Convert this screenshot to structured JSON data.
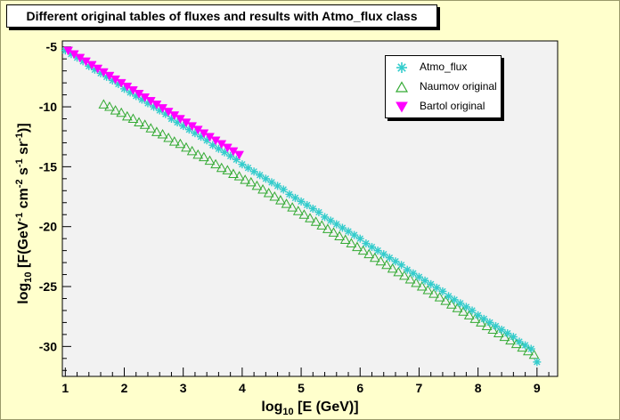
{
  "window": {
    "title": "Different original tables of fluxes and results with Atmo_flux class",
    "background": "#ffffcc",
    "plot_background": "#f2f2f2"
  },
  "chart_data": {
    "type": "scatter",
    "title": "Different original tables of fluxes and results with Atmo_flux class",
    "xlabel": {
      "prefix": "log",
      "sub": "10",
      "rest": " [E (GeV)]"
    },
    "ylabel": {
      "prefix": "log",
      "sub": "10",
      "a": " [F(GeV",
      "s1": "-1",
      "b": " cm",
      "s2": "-2",
      "c": " s",
      "s3": "-1",
      "d": " sr",
      "s4": "-1",
      "e": ")]"
    },
    "xlim": [
      0.95,
      9.35
    ],
    "ylim": [
      -32.5,
      -4.5
    ],
    "x_ticks": [
      1,
      2,
      3,
      4,
      5,
      6,
      7,
      8,
      9
    ],
    "x_tick_labels": [
      "1",
      "2",
      "3",
      "4",
      "5",
      "6",
      "7",
      "8",
      "9"
    ],
    "y_ticks": [
      -5,
      -10,
      -15,
      -20,
      -25,
      -30
    ],
    "y_tick_labels": [
      "-5",
      "-10",
      "-15",
      "-20",
      "-25",
      "-30"
    ],
    "grid": false,
    "legend_position": "top-right",
    "series": [
      {
        "name": "Atmo_flux",
        "marker": "asterisk",
        "color": "#33cccc",
        "points": [
          [
            1.0,
            -5.3
          ],
          [
            1.1,
            -5.6
          ],
          [
            1.2,
            -5.9
          ],
          [
            1.3,
            -6.2
          ],
          [
            1.4,
            -6.6
          ],
          [
            1.5,
            -6.9
          ],
          [
            1.6,
            -7.2
          ],
          [
            1.7,
            -7.5
          ],
          [
            1.8,
            -7.8
          ],
          [
            1.9,
            -8.1
          ],
          [
            2.0,
            -8.5
          ],
          [
            2.1,
            -8.8
          ],
          [
            2.2,
            -9.1
          ],
          [
            2.3,
            -9.4
          ],
          [
            2.4,
            -9.7
          ],
          [
            2.5,
            -10.0
          ],
          [
            2.6,
            -10.3
          ],
          [
            2.7,
            -10.6
          ],
          [
            2.8,
            -11.0
          ],
          [
            2.9,
            -11.3
          ],
          [
            3.0,
            -11.6
          ],
          [
            3.1,
            -11.9
          ],
          [
            3.2,
            -12.2
          ],
          [
            3.3,
            -12.5
          ],
          [
            3.4,
            -12.8
          ],
          [
            3.5,
            -13.2
          ],
          [
            3.6,
            -13.5
          ],
          [
            3.7,
            -13.8
          ],
          [
            3.8,
            -14.1
          ],
          [
            3.9,
            -14.4
          ],
          [
            4.0,
            -14.8
          ],
          [
            4.1,
            -15.1
          ],
          [
            4.2,
            -15.4
          ],
          [
            4.3,
            -15.7
          ],
          [
            4.4,
            -16.0
          ],
          [
            4.5,
            -16.3
          ],
          [
            4.6,
            -16.6
          ],
          [
            4.7,
            -16.9
          ],
          [
            4.8,
            -17.3
          ],
          [
            4.9,
            -17.6
          ],
          [
            5.0,
            -17.9
          ],
          [
            5.1,
            -18.2
          ],
          [
            5.2,
            -18.5
          ],
          [
            5.3,
            -18.8
          ],
          [
            5.4,
            -19.2
          ],
          [
            5.5,
            -19.5
          ],
          [
            5.6,
            -19.8
          ],
          [
            5.7,
            -20.1
          ],
          [
            5.8,
            -20.4
          ],
          [
            5.9,
            -20.7
          ],
          [
            6.0,
            -21.0
          ],
          [
            6.1,
            -21.4
          ],
          [
            6.2,
            -21.7
          ],
          [
            6.3,
            -22.0
          ],
          [
            6.4,
            -22.3
          ],
          [
            6.5,
            -22.6
          ],
          [
            6.6,
            -22.9
          ],
          [
            6.7,
            -23.2
          ],
          [
            6.8,
            -23.6
          ],
          [
            6.9,
            -23.9
          ],
          [
            7.0,
            -24.2
          ],
          [
            7.1,
            -24.5
          ],
          [
            7.2,
            -24.8
          ],
          [
            7.3,
            -25.1
          ],
          [
            7.4,
            -25.4
          ],
          [
            7.5,
            -25.8
          ],
          [
            7.6,
            -26.1
          ],
          [
            7.7,
            -26.4
          ],
          [
            7.8,
            -26.7
          ],
          [
            7.9,
            -27.0
          ],
          [
            8.0,
            -27.4
          ],
          [
            8.1,
            -27.7
          ],
          [
            8.2,
            -28.0
          ],
          [
            8.3,
            -28.3
          ],
          [
            8.4,
            -28.6
          ],
          [
            8.5,
            -28.9
          ],
          [
            8.6,
            -29.2
          ],
          [
            8.7,
            -29.6
          ],
          [
            8.8,
            -29.9
          ],
          [
            8.9,
            -30.2
          ],
          [
            9.0,
            -31.3
          ]
        ]
      },
      {
        "name": "Naumov original",
        "marker": "open-triangle",
        "color": "#33aa33",
        "points": [
          [
            1.65,
            -9.8
          ],
          [
            1.75,
            -10.0
          ],
          [
            1.85,
            -10.3
          ],
          [
            1.95,
            -10.5
          ],
          [
            2.05,
            -10.8
          ],
          [
            2.15,
            -11.0
          ],
          [
            2.25,
            -11.3
          ],
          [
            2.35,
            -11.5
          ],
          [
            2.45,
            -11.8
          ],
          [
            2.55,
            -12.1
          ],
          [
            2.65,
            -12.3
          ],
          [
            2.75,
            -12.6
          ],
          [
            2.85,
            -12.9
          ],
          [
            2.95,
            -13.1
          ],
          [
            3.05,
            -13.4
          ],
          [
            3.15,
            -13.7
          ],
          [
            3.25,
            -14.0
          ],
          [
            3.35,
            -14.2
          ],
          [
            3.45,
            -14.5
          ],
          [
            3.55,
            -14.8
          ],
          [
            3.65,
            -15.1
          ],
          [
            3.75,
            -15.3
          ],
          [
            3.85,
            -15.6
          ],
          [
            3.95,
            -15.8
          ],
          [
            4.05,
            -16.1
          ],
          [
            4.15,
            -16.3
          ],
          [
            4.25,
            -16.6
          ],
          [
            4.35,
            -16.9
          ],
          [
            4.45,
            -17.2
          ],
          [
            4.55,
            -17.5
          ],
          [
            4.65,
            -17.8
          ],
          [
            4.75,
            -18.1
          ],
          [
            4.85,
            -18.4
          ],
          [
            4.95,
            -18.7
          ],
          [
            5.05,
            -19.0
          ],
          [
            5.15,
            -19.3
          ],
          [
            5.25,
            -19.6
          ],
          [
            5.35,
            -19.9
          ],
          [
            5.45,
            -20.2
          ],
          [
            5.55,
            -20.5
          ],
          [
            5.65,
            -20.8
          ],
          [
            5.75,
            -21.1
          ],
          [
            5.85,
            -21.4
          ],
          [
            5.95,
            -21.7
          ],
          [
            6.05,
            -22.0
          ],
          [
            6.15,
            -22.3
          ],
          [
            6.25,
            -22.6
          ],
          [
            6.35,
            -22.9
          ],
          [
            6.45,
            -23.2
          ],
          [
            6.55,
            -23.5
          ],
          [
            6.65,
            -23.8
          ],
          [
            6.75,
            -24.1
          ],
          [
            6.85,
            -24.4
          ],
          [
            6.95,
            -24.7
          ],
          [
            7.05,
            -25.0
          ],
          [
            7.15,
            -25.3
          ],
          [
            7.25,
            -25.6
          ],
          [
            7.35,
            -25.9
          ],
          [
            7.45,
            -26.2
          ],
          [
            7.55,
            -26.5
          ],
          [
            7.65,
            -26.8
          ],
          [
            7.75,
            -27.1
          ],
          [
            7.85,
            -27.4
          ],
          [
            7.95,
            -27.7
          ],
          [
            8.05,
            -28.0
          ],
          [
            8.15,
            -28.3
          ],
          [
            8.25,
            -28.6
          ],
          [
            8.35,
            -28.9
          ],
          [
            8.45,
            -29.2
          ],
          [
            8.55,
            -29.5
          ],
          [
            8.65,
            -29.8
          ],
          [
            8.75,
            -30.1
          ],
          [
            8.85,
            -30.4
          ],
          [
            8.95,
            -30.7
          ]
        ]
      },
      {
        "name": "Bartol original",
        "marker": "filled-down-triangle",
        "color": "#ff00ff",
        "points": [
          [
            1.05,
            -5.3
          ],
          [
            1.15,
            -5.6
          ],
          [
            1.25,
            -5.9
          ],
          [
            1.35,
            -6.2
          ],
          [
            1.45,
            -6.5
          ],
          [
            1.55,
            -6.8
          ],
          [
            1.65,
            -7.1
          ],
          [
            1.75,
            -7.4
          ],
          [
            1.85,
            -7.7
          ],
          [
            1.95,
            -8.0
          ],
          [
            2.05,
            -8.3
          ],
          [
            2.15,
            -8.6
          ],
          [
            2.25,
            -8.9
          ],
          [
            2.35,
            -9.2
          ],
          [
            2.45,
            -9.5
          ],
          [
            2.55,
            -9.8
          ],
          [
            2.65,
            -10.1
          ],
          [
            2.75,
            -10.4
          ],
          [
            2.85,
            -10.7
          ],
          [
            2.95,
            -11.0
          ],
          [
            3.05,
            -11.3
          ],
          [
            3.15,
            -11.6
          ],
          [
            3.25,
            -11.9
          ],
          [
            3.35,
            -12.2
          ],
          [
            3.45,
            -12.5
          ],
          [
            3.55,
            -12.8
          ],
          [
            3.65,
            -13.1
          ],
          [
            3.75,
            -13.4
          ],
          [
            3.85,
            -13.7
          ],
          [
            3.95,
            -14.0
          ]
        ]
      }
    ]
  }
}
